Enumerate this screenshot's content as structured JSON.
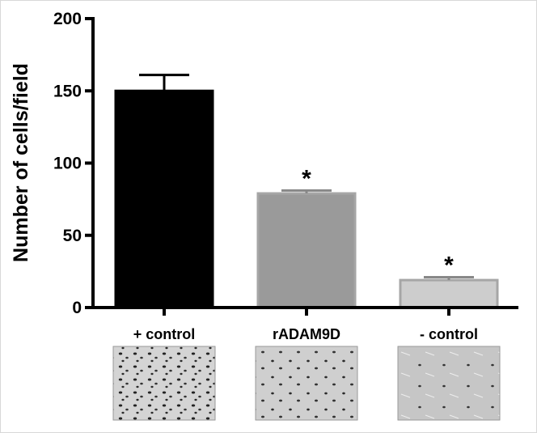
{
  "chart_data": {
    "type": "bar",
    "categories": [
      "+ control",
      "rADAM9D",
      "- control"
    ],
    "values": [
      150,
      79,
      19
    ],
    "errors": [
      11,
      2,
      2
    ],
    "significance": [
      "",
      "*",
      "*"
    ],
    "ylabel": "Number of cells/field",
    "ylim": [
      0,
      200
    ],
    "yticks": [
      0,
      50,
      100,
      150,
      200
    ],
    "grid": false,
    "bar_colors": [
      "#000000",
      "#9a9a9a",
      "#cdcdcd"
    ],
    "bar_outline": [
      "#000000",
      "#a6a6a6",
      "#a6a6a6"
    ],
    "thumbnails_below_categories": true
  }
}
